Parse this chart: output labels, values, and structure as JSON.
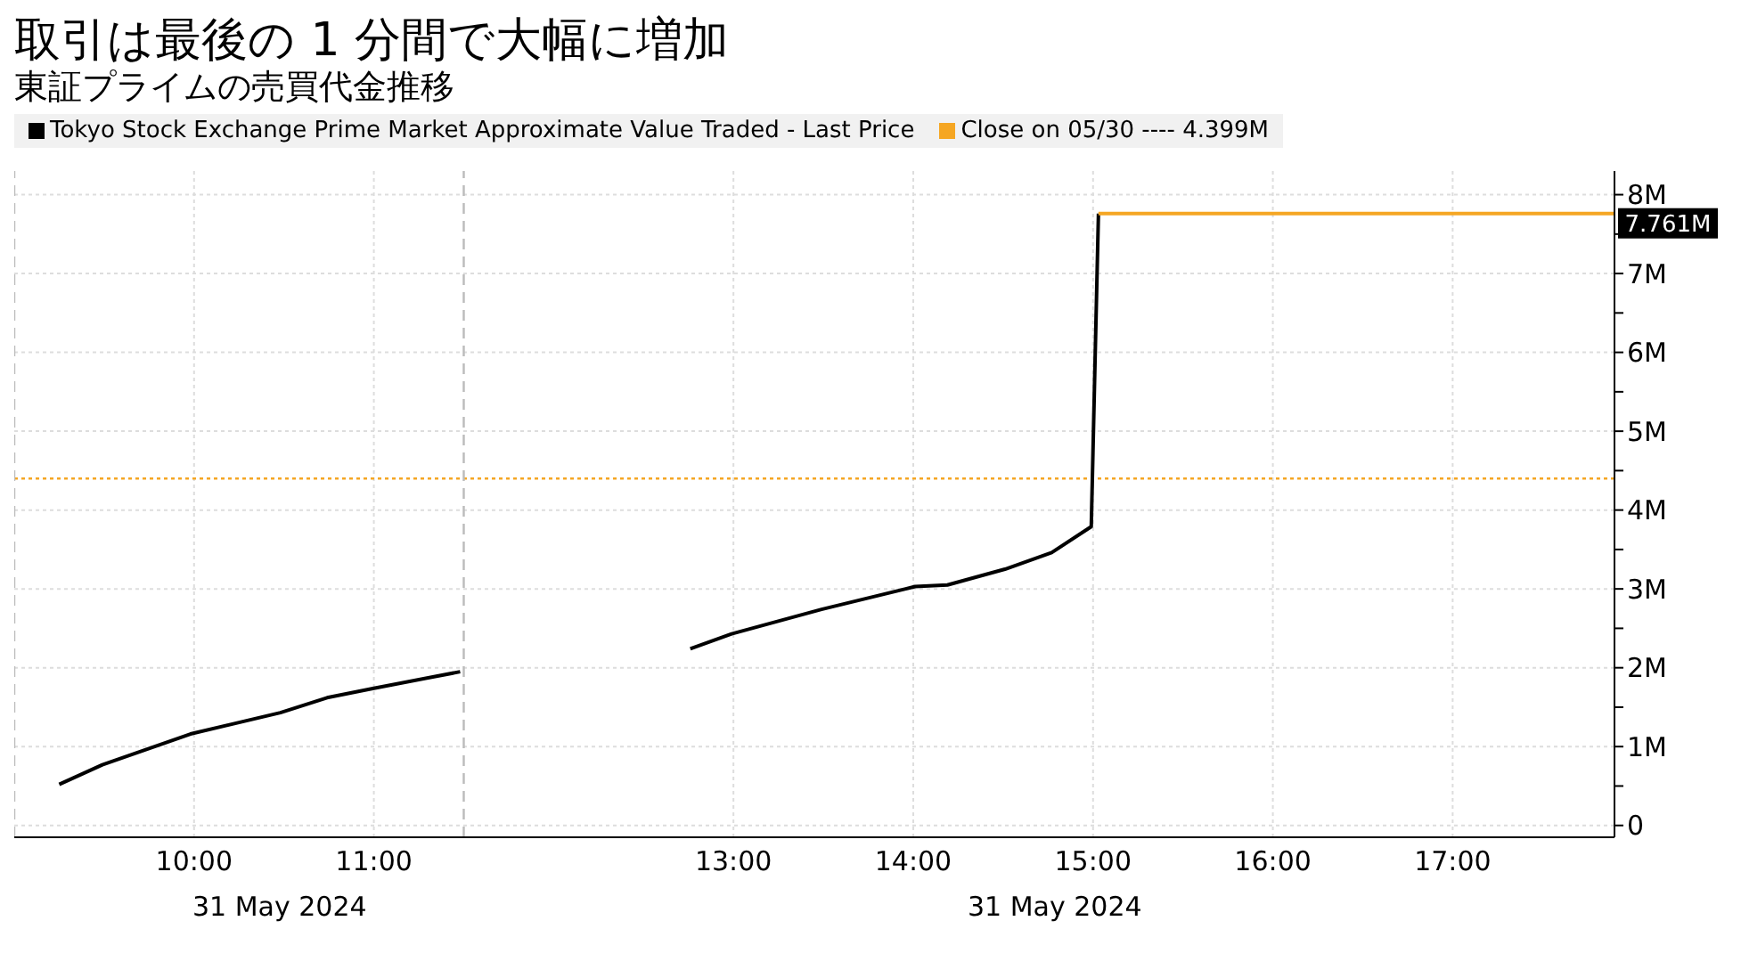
{
  "chart_data": {
    "type": "line",
    "title": "取引は最後の 1 分間で大幅に増加",
    "subtitle": "東証プライムの売買代金推移",
    "series": [
      {
        "name": "Tokyo Stock Exchange Prime Market Approximate Value Traded - Last Price",
        "color": "#000000",
        "x": [
          9.25,
          9.49,
          9.98,
          10.48,
          10.74,
          11.0,
          11.48,
          11.5,
          12.76,
          12.99,
          13.49,
          14.01,
          14.19,
          14.51,
          14.77,
          14.99,
          15.03
        ],
        "values": [
          0.52,
          0.77,
          1.16,
          1.43,
          1.62,
          1.74,
          1.95,
          null,
          2.24,
          2.43,
          2.74,
          3.03,
          3.05,
          3.25,
          3.46,
          3.79,
          7.761
        ]
      },
      {
        "color": "#f5a623",
        "x": [
          15.03,
          17.9
        ],
        "values": [
          7.761,
          7.761
        ]
      }
    ],
    "xlim": [
      9,
      17.9
    ],
    "xticks": [
      {
        "value": 10,
        "label": "10:00"
      },
      {
        "value": 11,
        "label": "11:00"
      },
      {
        "value": 13,
        "label": "13:00"
      },
      {
        "value": 14,
        "label": "14:00"
      },
      {
        "value": 15,
        "label": "15:00"
      },
      {
        "value": 16,
        "label": "16:00"
      },
      {
        "value": 17,
        "label": "17:00"
      }
    ],
    "ylim": [
      -0.15,
      8.3
    ],
    "yticks": [
      0,
      {
        "value": 0.5,
        "label": null
      },
      {
        "value": 1,
        "label": "1M"
      },
      {
        "value": 1.5,
        "label": null
      },
      {
        "value": 2,
        "label": "2M"
      },
      {
        "value": 2.5,
        "label": null
      },
      {
        "value": 3,
        "label": "3M"
      },
      {
        "value": 3.5,
        "label": null
      },
      {
        "value": 4,
        "label": "4M"
      },
      {
        "value": 4.5,
        "label": null
      },
      {
        "value": 5,
        "label": "5M"
      },
      {
        "value": 5.5,
        "label": null
      },
      {
        "value": 6,
        "label": "6M"
      },
      {
        "value": 6.5,
        "label": null
      },
      {
        "value": 7,
        "label": "7M"
      },
      {
        "value": 7.5,
        "label": null
      },
      {
        "value": 8,
        "label": "8M"
      }
    ],
    "ref_lines": [
      {
        "axis": "y",
        "value": 4.399,
        "label": "Close on 05/30 ---- 4.399M",
        "color": "#f5a623",
        "line_style": "dotted"
      },
      {
        "axis": "x",
        "value": 9,
        "color": "#bbbbbb",
        "line_style": "dashed"
      },
      {
        "axis": "x",
        "value": 11.5,
        "color": "#bbbbbb",
        "line_style": "dashed"
      }
    ],
    "annotations": [
      {
        "text": "7.761M",
        "x": 17.9,
        "y": 7.761
      },
      "31 May 2024",
      "31 May 2024"
    ],
    "grid": true,
    "legend": "top left",
    "marker": "none",
    "line_style": "solid"
  }
}
